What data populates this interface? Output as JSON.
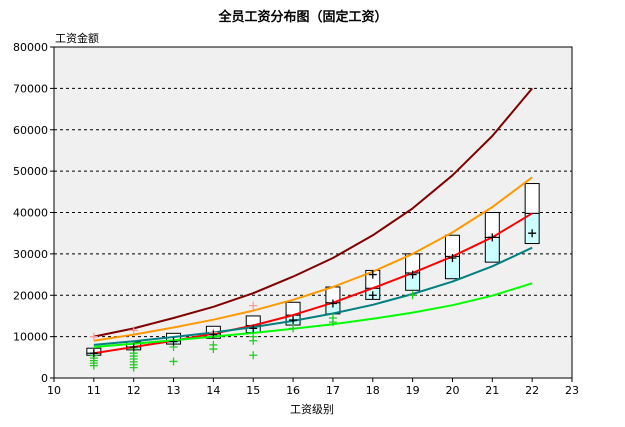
{
  "chart_data": {
    "type": "box+line",
    "title": "全员工资分布图（固定工资）",
    "xlabel": "工资级别",
    "ylabel": "工资金额",
    "xlim": [
      10,
      23
    ],
    "ylim": [
      0,
      80000
    ],
    "x_ticks": [
      10,
      11,
      12,
      13,
      14,
      15,
      16,
      17,
      18,
      19,
      20,
      21,
      22,
      23
    ],
    "y_ticks": [
      0,
      10000,
      20000,
      30000,
      40000,
      50000,
      60000,
      70000,
      80000
    ],
    "y_tick_labels": [
      "0",
      "10000",
      "20000",
      "30000",
      "40000",
      "50000",
      "60000",
      "70000",
      "80000"
    ],
    "grid": "horizontal-dashed",
    "series": [
      {
        "color": "#800000",
        "x": [
          11,
          12,
          13,
          14,
          15,
          16,
          17,
          18,
          19,
          20,
          21,
          22
        ],
        "values": [
          10000,
          12000,
          14500,
          17200,
          20500,
          24500,
          29000,
          34500,
          41000,
          49000,
          58500,
          70000
        ]
      },
      {
        "color": "#ff9900",
        "x": [
          11,
          12,
          13,
          14,
          15,
          16,
          17,
          18,
          19,
          20,
          21,
          22
        ],
        "values": [
          9000,
          10500,
          12200,
          14100,
          16300,
          18900,
          22000,
          25700,
          30000,
          35200,
          41300,
          48500
        ]
      },
      {
        "color": "#ff0000",
        "x": [
          11,
          12,
          13,
          14,
          15,
          16,
          17,
          18,
          19,
          20,
          21,
          22
        ],
        "values": [
          6000,
          7500,
          9000,
          10700,
          12700,
          15200,
          18200,
          21700,
          25400,
          29400,
          34000,
          39800
        ]
      },
      {
        "color": "#008080",
        "x": [
          11,
          12,
          13,
          14,
          15,
          16,
          17,
          18,
          19,
          20,
          21,
          22
        ],
        "values": [
          8000,
          8900,
          9900,
          11000,
          12300,
          13800,
          15600,
          17700,
          20300,
          23300,
          27000,
          31500
        ]
      },
      {
        "color": "#00ff00",
        "x": [
          11,
          12,
          13,
          14,
          15,
          16,
          17,
          18,
          19,
          20,
          21,
          22
        ],
        "values": [
          7500,
          8300,
          9100,
          10000,
          10900,
          11900,
          13000,
          14300,
          15800,
          17600,
          19900,
          22900
        ]
      }
    ],
    "boxes": [
      {
        "x": 11,
        "low": 5500,
        "q1": 5500,
        "median": 6000,
        "q3": 7200,
        "high": 7200
      },
      {
        "x": 12,
        "low": 6800,
        "q1": 6800,
        "median": 7500,
        "q3": 8700,
        "high": 8700
      },
      {
        "x": 13,
        "low": 8200,
        "q1": 8200,
        "median": 9000,
        "q3": 10800,
        "high": 10800
      },
      {
        "x": 14,
        "low": 9600,
        "q1": 9600,
        "median": 10700,
        "q3": 12500,
        "high": 12500
      },
      {
        "x": 15,
        "low": 11000,
        "q1": 11000,
        "median": 12700,
        "q3": 15000,
        "high": 15000
      },
      {
        "x": 16,
        "low": 12800,
        "q1": 12800,
        "median": 15200,
        "q3": 18300,
        "high": 18300
      },
      {
        "x": 17,
        "low": 15500,
        "q1": 15500,
        "median": 18200,
        "q3": 22000,
        "high": 22000
      },
      {
        "x": 18,
        "low": 19000,
        "q1": 19000,
        "median": 21700,
        "q3": 26000,
        "high": 26000
      },
      {
        "x": 19,
        "low": 21200,
        "q1": 21200,
        "median": 25400,
        "q3": 30000,
        "high": 30000
      },
      {
        "x": 20,
        "low": 24000,
        "q1": 24000,
        "median": 29400,
        "q3": 34500,
        "high": 34500
      },
      {
        "x": 21,
        "low": 28000,
        "q1": 28000,
        "median": 34000,
        "q3": 40000,
        "high": 40000
      },
      {
        "x": 22,
        "low": 32500,
        "q1": 32500,
        "median": 39800,
        "q3": 47000,
        "high": 47000
      }
    ],
    "points_black": [
      {
        "x": 11,
        "y": 6000
      },
      {
        "x": 12,
        "y": 7500
      },
      {
        "x": 13,
        "y": 8800
      },
      {
        "x": 14,
        "y": 10500
      },
      {
        "x": 15,
        "y": 12000
      },
      {
        "x": 16,
        "y": 14000
      },
      {
        "x": 17,
        "y": 18000
      },
      {
        "x": 18,
        "y": 25000
      },
      {
        "x": 18,
        "y": 20000
      },
      {
        "x": 19,
        "y": 25000
      },
      {
        "x": 20,
        "y": 29000
      },
      {
        "x": 21,
        "y": 34000
      },
      {
        "x": 22,
        "y": 35000
      }
    ],
    "points_green": [
      {
        "x": 11,
        "y": 3000
      },
      {
        "x": 11,
        "y": 3600
      },
      {
        "x": 11,
        "y": 4200
      },
      {
        "x": 11,
        "y": 4800
      },
      {
        "x": 11,
        "y": 5400
      },
      {
        "x": 11,
        "y": 6000
      },
      {
        "x": 12,
        "y": 2500
      },
      {
        "x": 12,
        "y": 3200
      },
      {
        "x": 12,
        "y": 3900
      },
      {
        "x": 12,
        "y": 4600
      },
      {
        "x": 12,
        "y": 5300
      },
      {
        "x": 12,
        "y": 6000
      },
      {
        "x": 12,
        "y": 7000
      },
      {
        "x": 13,
        "y": 4000
      },
      {
        "x": 13,
        "y": 7500
      },
      {
        "x": 14,
        "y": 7000
      },
      {
        "x": 14,
        "y": 8000
      },
      {
        "x": 15,
        "y": 5500
      },
      {
        "x": 15,
        "y": 9000
      },
      {
        "x": 15,
        "y": 10000
      },
      {
        "x": 16,
        "y": 12000
      },
      {
        "x": 17,
        "y": 13500
      },
      {
        "x": 17,
        "y": 14500
      },
      {
        "x": 19,
        "y": 20000
      }
    ],
    "points_pink": [
      {
        "x": 11,
        "y": 10000
      },
      {
        "x": 12,
        "y": 11500
      },
      {
        "x": 14,
        "y": 11000
      },
      {
        "x": 15,
        "y": 17500
      }
    ]
  }
}
